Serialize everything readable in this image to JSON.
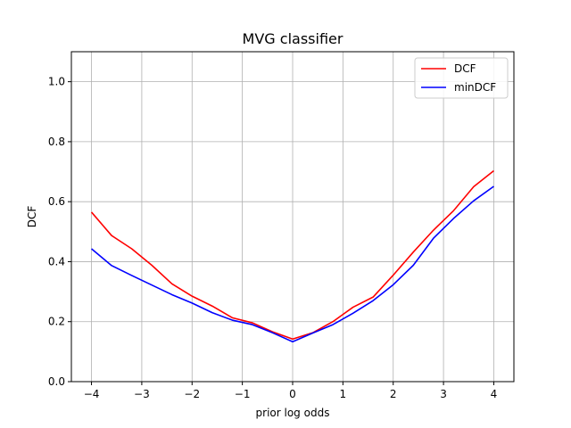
{
  "chart_data": {
    "type": "line",
    "title": "MVG classifier",
    "xlabel": "prior log odds",
    "ylabel": "DCF",
    "xlim": [
      -4.4,
      4.4
    ],
    "ylim": [
      0.0,
      1.1
    ],
    "x_ticks": [
      -4,
      -3,
      -2,
      -1,
      0,
      1,
      2,
      3,
      4
    ],
    "x_tick_labels": [
      "−4",
      "−3",
      "−2",
      "−1",
      "0",
      "1",
      "2",
      "3",
      "4"
    ],
    "y_ticks": [
      0.0,
      0.2,
      0.4,
      0.6,
      0.8,
      1.0
    ],
    "y_tick_labels": [
      "0.0",
      "0.2",
      "0.4",
      "0.6",
      "0.8",
      "1.0"
    ],
    "grid": true,
    "legend_position": "top-right",
    "x": [
      -4.0,
      -3.6,
      -3.2,
      -2.8,
      -2.4,
      -2.0,
      -1.6,
      -1.2,
      -0.8,
      -0.4,
      0.0,
      0.4,
      0.8,
      1.2,
      1.6,
      2.0,
      2.4,
      2.8,
      3.2,
      3.6,
      4.0
    ],
    "series": [
      {
        "name": "DCF",
        "color": "#ff0000",
        "values": [
          0.565,
          0.487,
          0.443,
          0.388,
          0.326,
          0.285,
          0.252,
          0.213,
          0.196,
          0.166,
          0.142,
          0.163,
          0.2,
          0.248,
          0.282,
          0.355,
          0.432,
          0.505,
          0.57,
          0.65,
          0.703
        ]
      },
      {
        "name": "minDCF",
        "color": "#0000ff",
        "values": [
          0.443,
          0.387,
          0.354,
          0.322,
          0.29,
          0.262,
          0.23,
          0.205,
          0.19,
          0.163,
          0.133,
          0.162,
          0.19,
          0.228,
          0.27,
          0.323,
          0.388,
          0.478,
          0.544,
          0.603,
          0.651
        ]
      }
    ]
  }
}
